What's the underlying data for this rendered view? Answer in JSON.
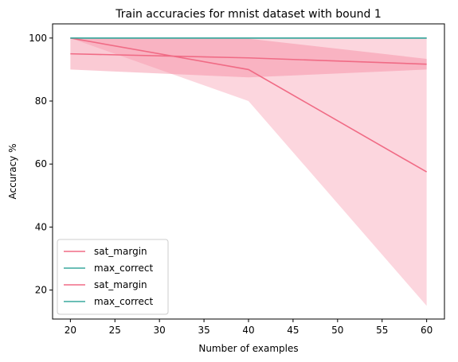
{
  "chart_data": {
    "type": "line",
    "title": "Train accuracies for mnist dataset with bound 1",
    "xlabel": "Number of examples",
    "ylabel": "Accuracy %",
    "x": [
      20,
      40,
      60
    ],
    "xlim": [
      18,
      62
    ],
    "ylim": [
      10.8,
      104.5
    ],
    "xticks": [
      20,
      25,
      30,
      35,
      40,
      45,
      50,
      55,
      60
    ],
    "yticks": [
      20,
      40,
      60,
      80,
      100
    ],
    "grid": false,
    "legend_position": "lower-left",
    "series": [
      {
        "name": "sat_margin",
        "color": "#f06b85",
        "values": [
          95.0,
          93.7,
          91.7
        ],
        "band_upper": [
          100.0,
          99.8,
          93.4
        ],
        "band_lower": [
          90.0,
          87.5,
          90.0
        ],
        "band_color": "#f58aa0",
        "band_opacity": 0.45
      },
      {
        "name": "max_correct",
        "color": "#3aa99e",
        "values": [
          100.0,
          100.0,
          100.0
        ],
        "band_upper": [
          100.0,
          100.0,
          100.0
        ],
        "band_lower": [
          100.0,
          100.0,
          100.0
        ],
        "band_color": "#3aa99e",
        "band_opacity": 0.3
      },
      {
        "name": "sat_margin",
        "color": "#f06b85",
        "values": [
          100.0,
          90.0,
          57.5
        ],
        "band_upper": [
          100.0,
          100.0,
          100.0
        ],
        "band_lower": [
          100.0,
          80.0,
          15.0
        ],
        "band_color": "#f58aa0",
        "band_opacity": 0.35
      },
      {
        "name": "max_correct",
        "color": "#3aa99e",
        "values": [
          100.0,
          100.0,
          100.0
        ],
        "band_upper": [
          100.0,
          100.0,
          100.0
        ],
        "band_lower": [
          100.0,
          100.0,
          100.0
        ],
        "band_color": "#3aa99e",
        "band_opacity": 0.3
      }
    ]
  }
}
